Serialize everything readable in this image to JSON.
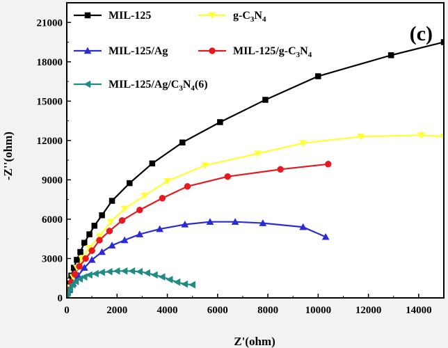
{
  "chart_data": {
    "type": "scatter",
    "panel_label": "(c)",
    "xlabel": "Z'(ohm)",
    "ylabel": "-Z''(ohm)",
    "xlim": [
      0,
      15000
    ],
    "ylim": [
      0,
      22500
    ],
    "xticks": [
      0,
      2000,
      4000,
      6000,
      8000,
      10000,
      12000,
      14000
    ],
    "yticks": [
      0,
      3000,
      6000,
      9000,
      12000,
      15000,
      18000,
      21000
    ],
    "series": [
      {
        "name": "MIL-125",
        "color": "#000000",
        "marker": "square",
        "points": [
          [
            0,
            0
          ],
          [
            50,
            600
          ],
          [
            100,
            1100
          ],
          [
            180,
            1700
          ],
          [
            280,
            2300
          ],
          [
            400,
            2900
          ],
          [
            540,
            3500
          ],
          [
            700,
            4200
          ],
          [
            900,
            4850
          ],
          [
            1100,
            5500
          ],
          [
            1400,
            6300
          ],
          [
            1800,
            7400
          ],
          [
            2500,
            8750
          ],
          [
            3400,
            10250
          ],
          [
            4600,
            11850
          ],
          [
            6100,
            13400
          ],
          [
            7900,
            15100
          ],
          [
            10000,
            16900
          ],
          [
            12900,
            18500
          ],
          [
            15000,
            19500
          ]
        ]
      },
      {
        "name": "g-C3N4",
        "color": "#ffff33",
        "marker": "triangle-down",
        "points": [
          [
            0,
            0
          ],
          [
            100,
            800
          ],
          [
            250,
            1600
          ],
          [
            400,
            2300
          ],
          [
            600,
            3000
          ],
          [
            900,
            3800
          ],
          [
            1300,
            4700
          ],
          [
            1750,
            5800
          ],
          [
            2300,
            6800
          ],
          [
            3100,
            7800
          ],
          [
            4000,
            8900
          ],
          [
            5500,
            10100
          ],
          [
            7600,
            11000
          ],
          [
            9400,
            11800
          ],
          [
            11700,
            12300
          ],
          [
            14100,
            12400
          ],
          [
            15000,
            12300
          ]
        ]
      },
      {
        "name": "MIL-125/Ag",
        "color": "#2b2bd6",
        "marker": "triangle-up",
        "points": [
          [
            0,
            0
          ],
          [
            100,
            600
          ],
          [
            250,
            1100
          ],
          [
            450,
            1700
          ],
          [
            700,
            2300
          ],
          [
            1000,
            2900
          ],
          [
            1400,
            3500
          ],
          [
            1800,
            4000
          ],
          [
            2300,
            4400
          ],
          [
            2900,
            4850
          ],
          [
            3700,
            5250
          ],
          [
            4700,
            5600
          ],
          [
            5700,
            5800
          ],
          [
            6700,
            5800
          ],
          [
            7800,
            5700
          ],
          [
            9400,
            5400
          ],
          [
            10300,
            4650
          ]
        ]
      },
      {
        "name": "MIL-125/g-C3N4",
        "color": "#e8191e",
        "marker": "circle",
        "points": [
          [
            0,
            0
          ],
          [
            80,
            600
          ],
          [
            180,
            1200
          ],
          [
            320,
            1800
          ],
          [
            500,
            2400
          ],
          [
            750,
            3000
          ],
          [
            1000,
            3600
          ],
          [
            1300,
            4400
          ],
          [
            1700,
            5100
          ],
          [
            2200,
            5900
          ],
          [
            2900,
            6700
          ],
          [
            3800,
            7600
          ],
          [
            4800,
            8500
          ],
          [
            6400,
            9250
          ],
          [
            8500,
            9800
          ],
          [
            10400,
            10200
          ]
        ]
      },
      {
        "name": "MIL-125/Ag/C3N4(6)",
        "color": "#1e8c84",
        "marker": "triangle-left",
        "points": [
          [
            0,
            0
          ],
          [
            50,
            400
          ],
          [
            130,
            700
          ],
          [
            230,
            1000
          ],
          [
            360,
            1250
          ],
          [
            520,
            1450
          ],
          [
            700,
            1600
          ],
          [
            900,
            1750
          ],
          [
            1150,
            1850
          ],
          [
            1400,
            1950
          ],
          [
            1700,
            2000
          ],
          [
            2000,
            2050
          ],
          [
            2300,
            2050
          ],
          [
            2600,
            2050
          ],
          [
            2900,
            2000
          ],
          [
            3200,
            1900
          ],
          [
            3500,
            1750
          ],
          [
            3800,
            1600
          ],
          [
            4100,
            1400
          ],
          [
            4400,
            1200
          ],
          [
            4700,
            1050
          ],
          [
            5000,
            1000
          ]
        ]
      }
    ],
    "legend": [
      {
        "label": "MIL-125"
      },
      {
        "label": "g-C",
        "sub1": "3",
        "mid": "N",
        "sub2": "4"
      },
      {
        "label": "MIL-125/Ag"
      },
      {
        "label": "MIL-125/g-C",
        "sub1": "3",
        "mid": "N",
        "sub2": "4"
      },
      {
        "label": "MIL-125/Ag/C",
        "sub1": "3",
        "mid": "N",
        "sub2": "4",
        "tail": "(6)"
      }
    ]
  }
}
